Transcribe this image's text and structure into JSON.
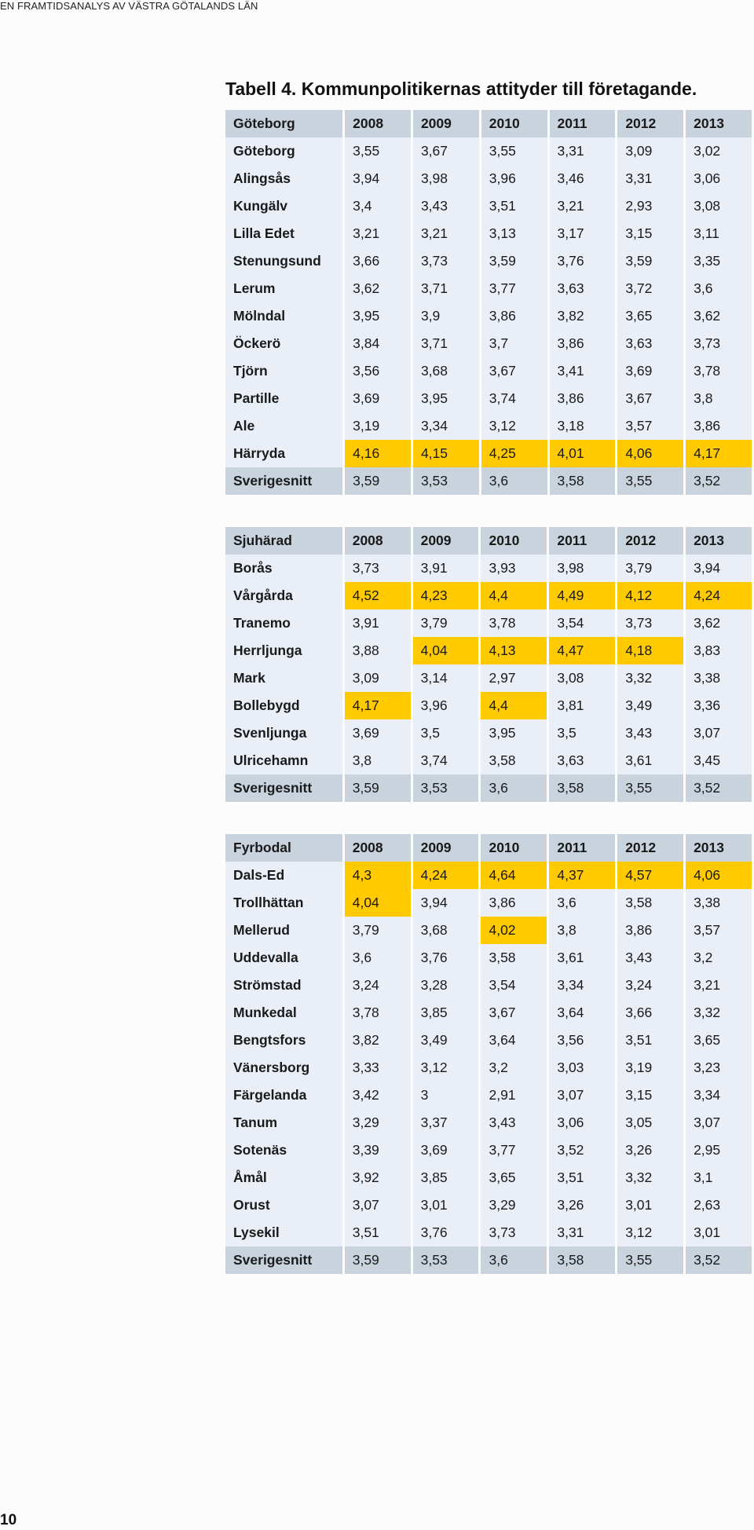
{
  "running_header": "EN FRAMTIDSANALYS AV VÄSTRA GÖTALANDS LÄN",
  "title": "Tabell 4. Kommunpolitikernas attityder till företagande.",
  "page_number": "10",
  "highlight_color": "#ffca00",
  "header_color": "#c9d3de",
  "row_color": "#eaeff7",
  "tables": [
    {
      "region": "Göteborg",
      "years": [
        "2008",
        "2009",
        "2010",
        "2011",
        "2012",
        "2013"
      ],
      "rows": [
        {
          "name": "Göteborg",
          "values": [
            "3,55",
            "3,67",
            "3,55",
            "3,31",
            "3,09",
            "3,02"
          ],
          "highlight": [
            0,
            0,
            0,
            0,
            0,
            0
          ]
        },
        {
          "name": "Alingsås",
          "values": [
            "3,94",
            "3,98",
            "3,96",
            "3,46",
            "3,31",
            "3,06"
          ],
          "highlight": [
            0,
            0,
            0,
            0,
            0,
            0
          ]
        },
        {
          "name": "Kungälv",
          "values": [
            "3,4",
            "3,43",
            "3,51",
            "3,21",
            "2,93",
            "3,08"
          ],
          "highlight": [
            0,
            0,
            0,
            0,
            0,
            0
          ]
        },
        {
          "name": "Lilla Edet",
          "values": [
            "3,21",
            "3,21",
            "3,13",
            "3,17",
            "3,15",
            "3,11"
          ],
          "highlight": [
            0,
            0,
            0,
            0,
            0,
            0
          ]
        },
        {
          "name": "Stenungsund",
          "values": [
            "3,66",
            "3,73",
            "3,59",
            "3,76",
            "3,59",
            "3,35"
          ],
          "highlight": [
            0,
            0,
            0,
            0,
            0,
            0
          ]
        },
        {
          "name": "Lerum",
          "values": [
            "3,62",
            "3,71",
            "3,77",
            "3,63",
            "3,72",
            "3,6"
          ],
          "highlight": [
            0,
            0,
            0,
            0,
            0,
            0
          ]
        },
        {
          "name": "Mölndal",
          "values": [
            "3,95",
            "3,9",
            "3,86",
            "3,82",
            "3,65",
            "3,62"
          ],
          "highlight": [
            0,
            0,
            0,
            0,
            0,
            0
          ]
        },
        {
          "name": "Öckerö",
          "values": [
            "3,84",
            "3,71",
            "3,7",
            "3,86",
            "3,63",
            "3,73"
          ],
          "highlight": [
            0,
            0,
            0,
            0,
            0,
            0
          ]
        },
        {
          "name": "Tjörn",
          "values": [
            "3,56",
            "3,68",
            "3,67",
            "3,41",
            "3,69",
            "3,78"
          ],
          "highlight": [
            0,
            0,
            0,
            0,
            0,
            0
          ]
        },
        {
          "name": "Partille",
          "values": [
            "3,69",
            "3,95",
            "3,74",
            "3,86",
            "3,67",
            "3,8"
          ],
          "highlight": [
            0,
            0,
            0,
            0,
            0,
            0
          ]
        },
        {
          "name": "Ale",
          "values": [
            "3,19",
            "3,34",
            "3,12",
            "3,18",
            "3,57",
            "3,86"
          ],
          "highlight": [
            0,
            0,
            0,
            0,
            0,
            0
          ]
        },
        {
          "name": "Härryda",
          "values": [
            "4,16",
            "4,15",
            "4,25",
            "4,01",
            "4,06",
            "4,17"
          ],
          "highlight": [
            1,
            1,
            1,
            1,
            1,
            1
          ]
        }
      ],
      "average": {
        "name": "Sverigesnitt",
        "values": [
          "3,59",
          "3,53",
          "3,6",
          "3,58",
          "3,55",
          "3,52"
        ]
      }
    },
    {
      "region": "Sjuhärad",
      "years": [
        "2008",
        "2009",
        "2010",
        "2011",
        "2012",
        "2013"
      ],
      "rows": [
        {
          "name": "Borås",
          "values": [
            "3,73",
            "3,91",
            "3,93",
            "3,98",
            "3,79",
            "3,94"
          ],
          "highlight": [
            0,
            0,
            0,
            0,
            0,
            0
          ]
        },
        {
          "name": "Vårgårda",
          "values": [
            "4,52",
            "4,23",
            "4,4",
            "4,49",
            "4,12",
            "4,24"
          ],
          "highlight": [
            1,
            1,
            1,
            1,
            1,
            1
          ]
        },
        {
          "name": "Tranemo",
          "values": [
            "3,91",
            "3,79",
            "3,78",
            "3,54",
            "3,73",
            "3,62"
          ],
          "highlight": [
            0,
            0,
            0,
            0,
            0,
            0
          ]
        },
        {
          "name": "Herrljunga",
          "values": [
            "3,88",
            "4,04",
            "4,13",
            "4,47",
            "4,18",
            "3,83"
          ],
          "highlight": [
            0,
            1,
            1,
            1,
            1,
            0
          ]
        },
        {
          "name": "Mark",
          "values": [
            "3,09",
            "3,14",
            "2,97",
            "3,08",
            "3,32",
            "3,38"
          ],
          "highlight": [
            0,
            0,
            0,
            0,
            0,
            0
          ]
        },
        {
          "name": "Bollebygd",
          "values": [
            "4,17",
            "3,96",
            "4,4",
            "3,81",
            "3,49",
            "3,36"
          ],
          "highlight": [
            1,
            0,
            1,
            0,
            0,
            0
          ]
        },
        {
          "name": "Svenljunga",
          "values": [
            "3,69",
            "3,5",
            "3,95",
            "3,5",
            "3,43",
            "3,07"
          ],
          "highlight": [
            0,
            0,
            0,
            0,
            0,
            0
          ]
        },
        {
          "name": "Ulricehamn",
          "values": [
            "3,8",
            "3,74",
            "3,58",
            "3,63",
            "3,61",
            "3,45"
          ],
          "highlight": [
            0,
            0,
            0,
            0,
            0,
            0
          ]
        }
      ],
      "average": {
        "name": "Sverigesnitt",
        "values": [
          "3,59",
          "3,53",
          "3,6",
          "3,58",
          "3,55",
          "3,52"
        ]
      }
    },
    {
      "region": "Fyrbodal",
      "years": [
        "2008",
        "2009",
        "2010",
        "2011",
        "2012",
        "2013"
      ],
      "rows": [
        {
          "name": "Dals-Ed",
          "values": [
            "4,3",
            "4,24",
            "4,64",
            "4,37",
            "4,57",
            "4,06"
          ],
          "highlight": [
            1,
            1,
            1,
            1,
            1,
            1
          ]
        },
        {
          "name": "Trollhättan",
          "values": [
            "4,04",
            "3,94",
            "3,86",
            "3,6",
            "3,58",
            "3,38"
          ],
          "highlight": [
            1,
            0,
            0,
            0,
            0,
            0
          ]
        },
        {
          "name": "Mellerud",
          "values": [
            "3,79",
            "3,68",
            "4,02",
            "3,8",
            "3,86",
            "3,57"
          ],
          "highlight": [
            0,
            0,
            1,
            0,
            0,
            0
          ]
        },
        {
          "name": "Uddevalla",
          "values": [
            "3,6",
            "3,76",
            "3,58",
            "3,61",
            "3,43",
            "3,2"
          ],
          "highlight": [
            0,
            0,
            0,
            0,
            0,
            0
          ]
        },
        {
          "name": "Strömstad",
          "values": [
            "3,24",
            "3,28",
            "3,54",
            "3,34",
            "3,24",
            "3,21"
          ],
          "highlight": [
            0,
            0,
            0,
            0,
            0,
            0
          ]
        },
        {
          "name": "Munkedal",
          "values": [
            "3,78",
            "3,85",
            "3,67",
            "3,64",
            "3,66",
            "3,32"
          ],
          "highlight": [
            0,
            0,
            0,
            0,
            0,
            0
          ]
        },
        {
          "name": "Bengtsfors",
          "values": [
            "3,82",
            "3,49",
            "3,64",
            "3,56",
            "3,51",
            "3,65"
          ],
          "highlight": [
            0,
            0,
            0,
            0,
            0,
            0
          ]
        },
        {
          "name": "Vänersborg",
          "values": [
            "3,33",
            "3,12",
            "3,2",
            "3,03",
            "3,19",
            "3,23"
          ],
          "highlight": [
            0,
            0,
            0,
            0,
            0,
            0
          ]
        },
        {
          "name": "Färgelanda",
          "values": [
            "3,42",
            "3",
            "2,91",
            "3,07",
            "3,15",
            "3,34"
          ],
          "highlight": [
            0,
            0,
            0,
            0,
            0,
            0
          ]
        },
        {
          "name": "Tanum",
          "values": [
            "3,29",
            "3,37",
            "3,43",
            "3,06",
            "3,05",
            "3,07"
          ],
          "highlight": [
            0,
            0,
            0,
            0,
            0,
            0
          ]
        },
        {
          "name": "Sotenäs",
          "values": [
            "3,39",
            "3,69",
            "3,77",
            "3,52",
            "3,26",
            "2,95"
          ],
          "highlight": [
            0,
            0,
            0,
            0,
            0,
            0
          ]
        },
        {
          "name": "Åmål",
          "values": [
            "3,92",
            "3,85",
            "3,65",
            "3,51",
            "3,32",
            "3,1"
          ],
          "highlight": [
            0,
            0,
            0,
            0,
            0,
            0
          ]
        },
        {
          "name": "Orust",
          "values": [
            "3,07",
            "3,01",
            "3,29",
            "3,26",
            "3,01",
            "2,63"
          ],
          "highlight": [
            0,
            0,
            0,
            0,
            0,
            0
          ]
        },
        {
          "name": "Lysekil",
          "values": [
            "3,51",
            "3,76",
            "3,73",
            "3,31",
            "3,12",
            "3,01"
          ],
          "highlight": [
            0,
            0,
            0,
            0,
            0,
            0
          ]
        }
      ],
      "average": {
        "name": "Sverigesnitt",
        "values": [
          "3,59",
          "3,53",
          "3,6",
          "3,58",
          "3,55",
          "3,52"
        ]
      }
    }
  ]
}
